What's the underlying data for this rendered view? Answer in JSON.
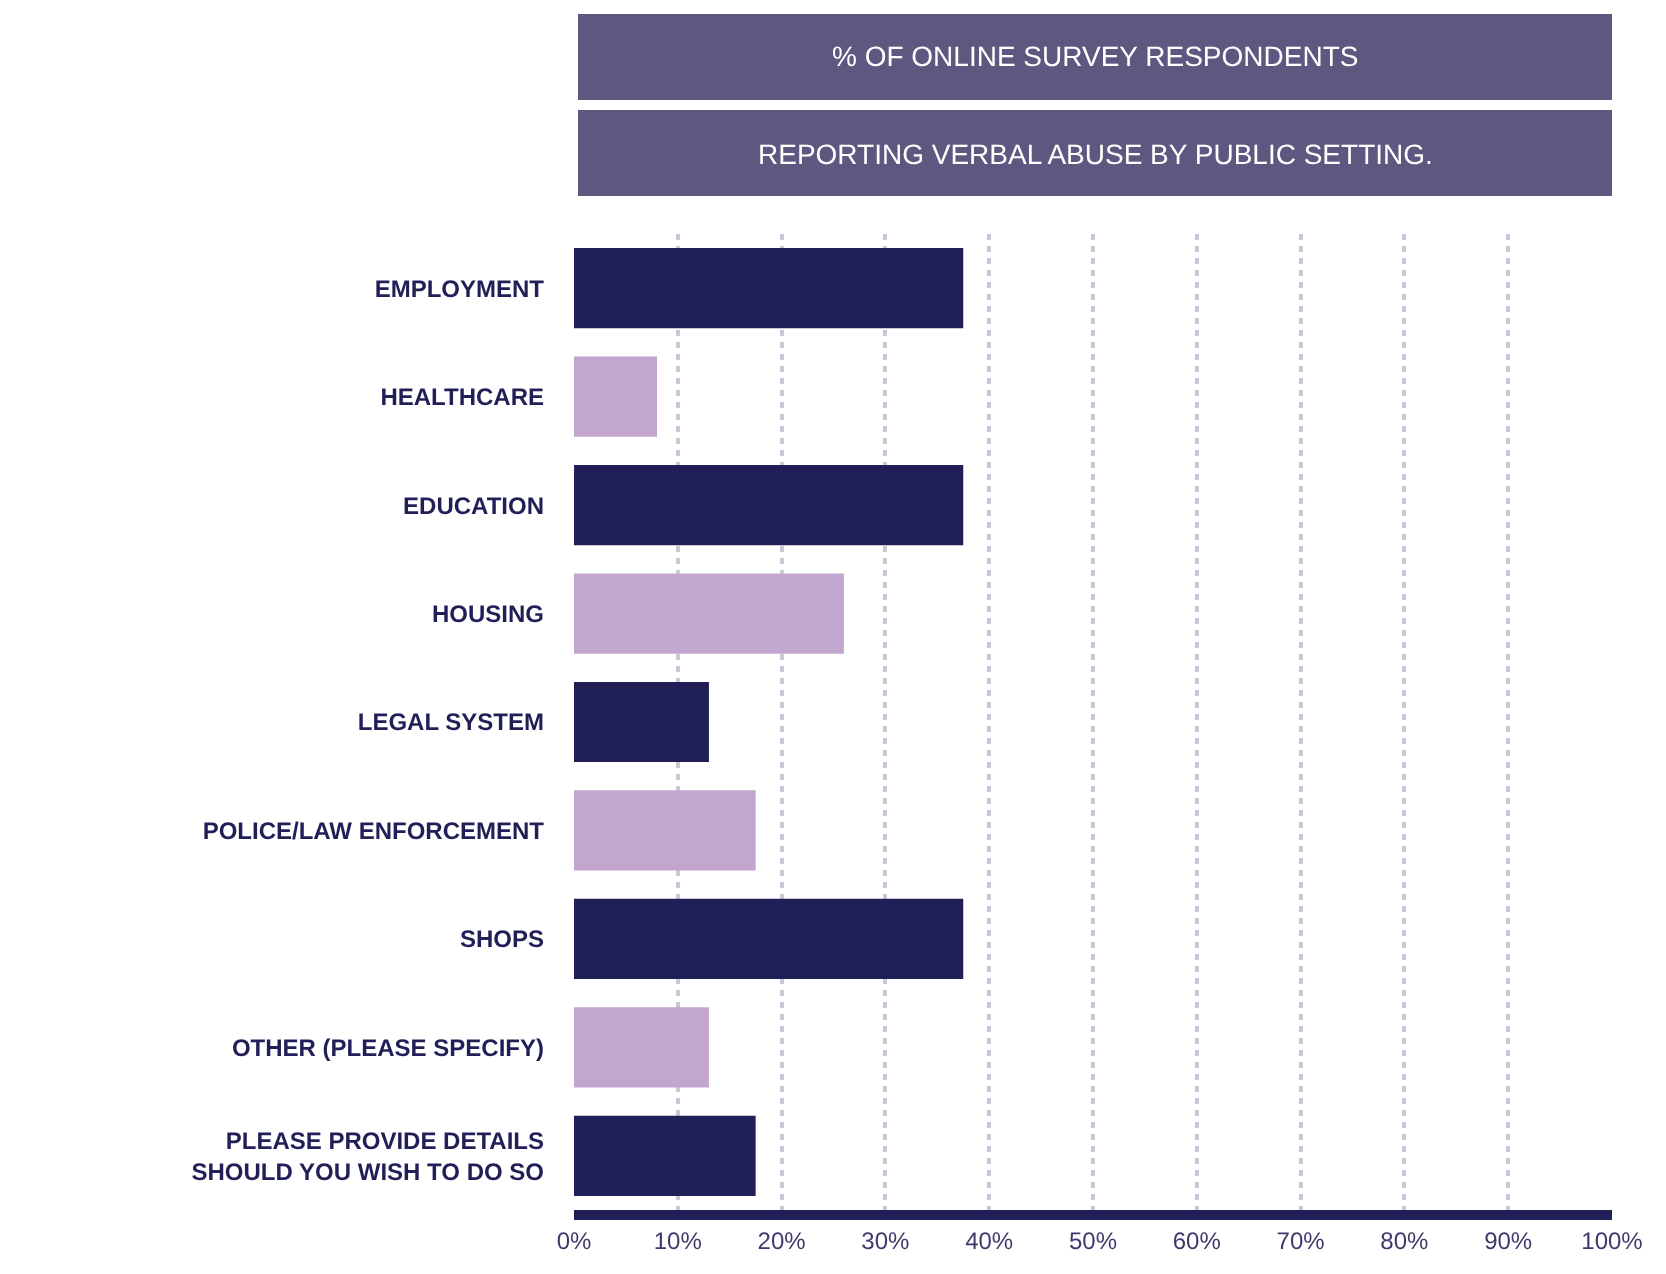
{
  "chart_data": {
    "type": "bar",
    "orientation": "horizontal",
    "title": "% OF ONLINE SURVEY RESPONDENTS",
    "subtitle": "REPORTING VERBAL ABUSE BY PUBLIC SETTING.",
    "categories": [
      "EMPLOYMENT",
      "HEALTHCARE",
      "EDUCATION",
      "HOUSING",
      "LEGAL SYSTEM",
      "POLICE/LAW ENFORCEMENT",
      "SHOPS",
      "OTHER (PLEASE SPECIFY)",
      "PLEASE PROVIDE DETAILS\nSHOULD YOU WISH TO DO SO"
    ],
    "values": [
      37.5,
      8,
      37.5,
      26,
      13,
      17.5,
      37.5,
      13,
      17.5
    ],
    "colors": [
      "#211f57",
      "#c2a6cd",
      "#211f57",
      "#c2a6cd",
      "#211f57",
      "#c2a6cd",
      "#211f57",
      "#c2a6cd",
      "#211f57"
    ],
    "xlim": [
      0,
      100
    ],
    "xticks": [
      {
        "value": 0,
        "label": "0%"
      },
      {
        "value": 10,
        "label": "10%"
      },
      {
        "value": 20,
        "label": "20%"
      },
      {
        "value": 30,
        "label": "30%"
      },
      {
        "value": 40,
        "label": "40%"
      },
      {
        "value": 50,
        "label": "50%"
      },
      {
        "value": 60,
        "label": "60%"
      },
      {
        "value": 70,
        "label": "70%"
      },
      {
        "value": 80,
        "label": "80%"
      },
      {
        "value": 90,
        "label": "90%"
      },
      {
        "value": 100,
        "label": "100%"
      }
    ],
    "grid": "x"
  }
}
